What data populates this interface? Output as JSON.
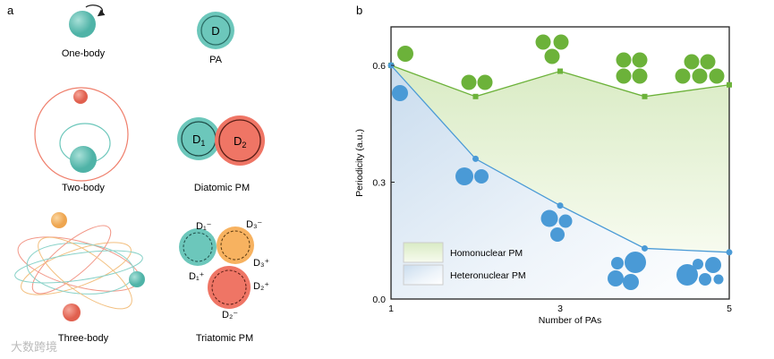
{
  "panel_a": {
    "label": "a",
    "items": [
      {
        "caption": "One-body"
      },
      {
        "caption": "PA",
        "symbol": "D"
      },
      {
        "caption": "Two-body"
      },
      {
        "caption": "Diatomic  PM",
        "symbols": [
          "D",
          "1",
          "D",
          "2"
        ]
      },
      {
        "caption": "Three-body"
      },
      {
        "caption": "Triatomic PM",
        "symbols": [
          "D₁⁻",
          "D₁⁺",
          "D₃⁻",
          "D₃⁺",
          "D₂⁺",
          "D₂⁻"
        ]
      }
    ]
  },
  "watermark": "大数跨境",
  "chart_data": {
    "panel_label": "b",
    "type": "line",
    "xlabel": "Number of PAs",
    "ylabel": "Periodicity (a.u.)",
    "x": [
      1,
      2,
      3,
      4,
      5
    ],
    "xlim": [
      1,
      5
    ],
    "ylim": [
      0,
      0.6
    ],
    "xticks": [
      "1",
      "3",
      "5"
    ],
    "yticks": [
      "0.0",
      "0.3",
      "0.6"
    ],
    "legend_position": "bottom-left",
    "series": [
      {
        "name": "Homonuclear PM",
        "color": "#6cb23a",
        "marker": "square",
        "values": [
          0.6,
          0.52,
          0.585,
          0.52,
          0.55
        ]
      },
      {
        "name": "Heteronuclear PM",
        "color": "#4a9ad6",
        "marker": "circle",
        "values": [
          0.6,
          0.36,
          0.24,
          0.13,
          0.12
        ]
      }
    ]
  }
}
